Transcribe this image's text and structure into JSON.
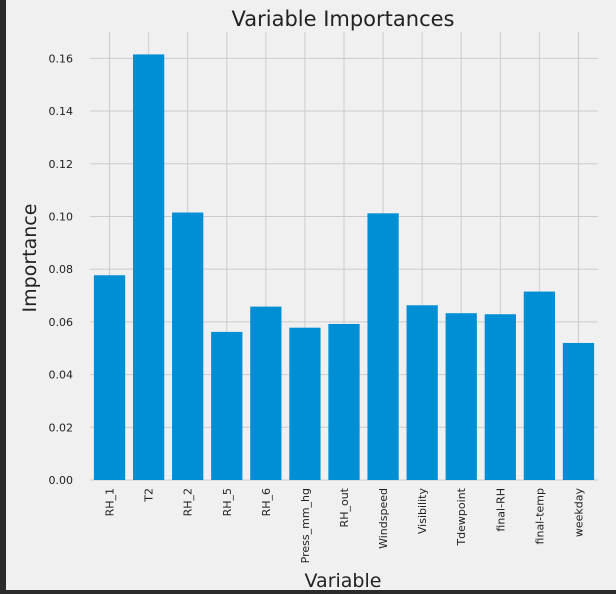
{
  "chart_data": {
    "type": "bar",
    "title": "Variable Importances",
    "xlabel": "Variable",
    "ylabel": "Importance",
    "categories": [
      "RH_1",
      "T2",
      "RH_2",
      "RH_5",
      "RH_6",
      "Press_mm_hg",
      "RH_out",
      "Windspeed",
      "Visibility",
      "Tdewpoint",
      "final-RH",
      "final-temp",
      "weekday"
    ],
    "values": [
      0.0777,
      0.1615,
      0.1015,
      0.0562,
      0.0658,
      0.0578,
      0.0592,
      0.1012,
      0.0663,
      0.0633,
      0.0629,
      0.0715,
      0.052
    ],
    "ylim": [
      0,
      0.17
    ],
    "yticks": [
      0.0,
      0.02,
      0.04,
      0.06,
      0.08,
      0.1,
      0.12,
      0.14,
      0.16
    ],
    "ytick_labels": [
      "0.00",
      "0.02",
      "0.04",
      "0.06",
      "0.08",
      "0.10",
      "0.12",
      "0.14",
      "0.16"
    ],
    "grid": true,
    "colors": {
      "bar": "#008fd5",
      "background": "#f0f0f0",
      "frame": "#2b2b2b",
      "grid": "#cbcbcb",
      "text": "#222222"
    }
  }
}
